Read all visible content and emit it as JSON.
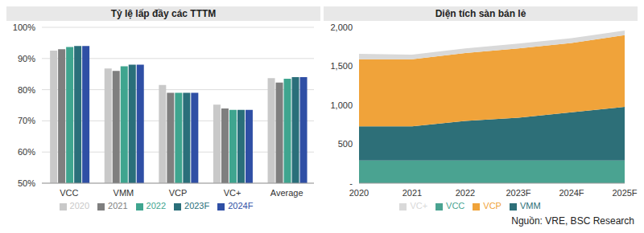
{
  "chart_data": [
    {
      "type": "bar",
      "title": "Tỷ lệ lấp đầy các TTTM",
      "categories": [
        "VCC",
        "VMM",
        "VCP",
        "VC+",
        "Average"
      ],
      "series": [
        {
          "name": "2020",
          "color": "#c9c9c9",
          "values": [
            92.5,
            86.8,
            81.5,
            75.2,
            83.7
          ]
        },
        {
          "name": "2021",
          "color": "#7f7f7f",
          "values": [
            93,
            86,
            79,
            74,
            82.3
          ]
        },
        {
          "name": "2022",
          "color": "#3fa58f",
          "values": [
            93.7,
            87.5,
            79,
            73.5,
            83.5
          ]
        },
        {
          "name": "2023F",
          "color": "#2a6f7a",
          "values": [
            94,
            88,
            79,
            73.5,
            84
          ]
        },
        {
          "name": "2024F",
          "color": "#2f4fa5",
          "values": [
            94,
            88,
            79,
            73.5,
            84
          ]
        }
      ],
      "ylim": [
        50,
        100
      ],
      "yticks": [
        {
          "value": 50,
          "label": "50%"
        },
        {
          "value": 60,
          "label": "60%"
        },
        {
          "value": 70,
          "label": "70%"
        },
        {
          "value": 80,
          "label": "80%"
        },
        {
          "value": 90,
          "label": "90%"
        },
        {
          "value": 100,
          "label": "100%"
        }
      ],
      "grid": true,
      "legend": "bottom"
    },
    {
      "type": "area",
      "title": "Diện tích sàn bán lẻ",
      "stacked": true,
      "categories": [
        "2020",
        "2021",
        "2022",
        "2023F",
        "2024F",
        "2025F"
      ],
      "series": [
        {
          "name": "VCC",
          "color": "#4aa391",
          "values": [
            290,
            290,
            290,
            290,
            290,
            290
          ]
        },
        {
          "name": "VMM",
          "color": "#2d6f78",
          "values": [
            440,
            440,
            510,
            550,
            620,
            690
          ]
        },
        {
          "name": "VCP",
          "color": "#f0a33a",
          "values": [
            860,
            860,
            870,
            890,
            890,
            920
          ]
        },
        {
          "name": "VC+",
          "color": "#d9d9d9",
          "values": [
            70,
            60,
            60,
            60,
            60,
            60
          ]
        }
      ],
      "ylim": [
        0,
        2000
      ],
      "yticks": [
        {
          "value": 0,
          "label": "-"
        },
        500,
        {
          "value": 1000,
          "label": "1,000"
        },
        {
          "value": 1500,
          "label": "1,500"
        },
        {
          "value": 2000,
          "label": "2,000"
        }
      ],
      "grid": false,
      "legend": "bottom"
    }
  ],
  "source": "Nguồn: VRE, BSC Research"
}
